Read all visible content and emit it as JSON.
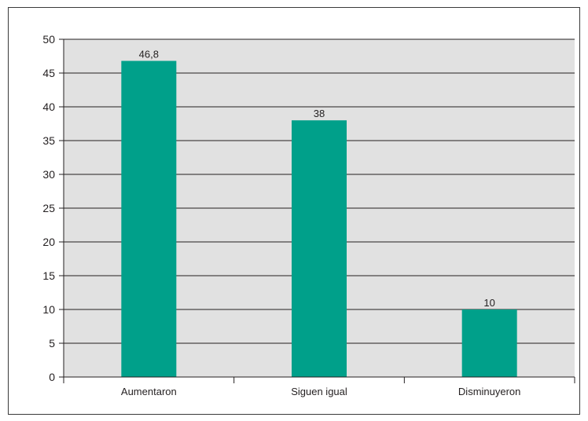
{
  "chart_data": {
    "type": "bar",
    "title": "",
    "xlabel": "",
    "ylabel": "",
    "categories": [
      "Aumentaron",
      "Siguen igual",
      "Disminuyeron"
    ],
    "values": [
      46.8,
      38,
      10
    ],
    "data_labels": [
      "46,8",
      "38",
      "10"
    ],
    "ylim": [
      0,
      50
    ],
    "yticks": [
      0,
      5,
      10,
      15,
      20,
      25,
      30,
      35,
      40,
      45,
      50
    ],
    "grid": true,
    "legend": "none",
    "colors": {
      "bar": "#00a08a",
      "plot_background": "#e1e1e1",
      "gridline": "#231f20",
      "frame": "#3a3a3a"
    }
  }
}
